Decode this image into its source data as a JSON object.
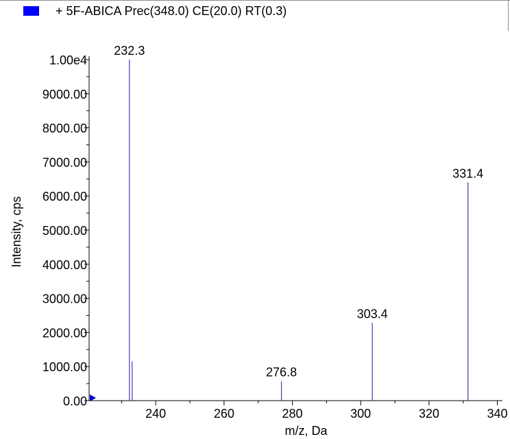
{
  "legend": {
    "label": "+ 5F-ABICA Prec(348.0) CE(20.0) RT(0.3)",
    "swatch_color": "#0000ff"
  },
  "chart_data": {
    "type": "bar",
    "title": "",
    "xlabel": "m/z, Da",
    "ylabel": "Intensity, cps",
    "xlim": [
      220.5,
      341.5
    ],
    "ylim": [
      0,
      10100
    ],
    "x_ticks": [
      240,
      260,
      280,
      300,
      320,
      340
    ],
    "y_ticks": [
      {
        "value": 0,
        "label": "0.00"
      },
      {
        "value": 1000,
        "label": "1000.00"
      },
      {
        "value": 2000,
        "label": "2000.00"
      },
      {
        "value": 3000,
        "label": "3000.00"
      },
      {
        "value": 4000,
        "label": "4000.00"
      },
      {
        "value": 5000,
        "label": "5000.00"
      },
      {
        "value": 6000,
        "label": "6000.00"
      },
      {
        "value": 7000,
        "label": "7000.00"
      },
      {
        "value": 8000,
        "label": "8000.00"
      },
      {
        "value": 9000,
        "label": "9000.00"
      },
      {
        "value": 10000,
        "label": "1.00e4"
      }
    ],
    "series": [
      {
        "color": "#3a3ab8",
        "points": [
          {
            "x": 232.3,
            "y": 10000,
            "label": "232.3"
          },
          {
            "x": 233.1,
            "y": 1150,
            "label": ""
          },
          {
            "x": 276.8,
            "y": 570,
            "label": "276.8"
          },
          {
            "x": 303.4,
            "y": 2280,
            "label": "303.4"
          },
          {
            "x": 331.4,
            "y": 6400,
            "label": "331.4"
          }
        ]
      }
    ],
    "marker_color": "#0000cc",
    "grid": false
  }
}
